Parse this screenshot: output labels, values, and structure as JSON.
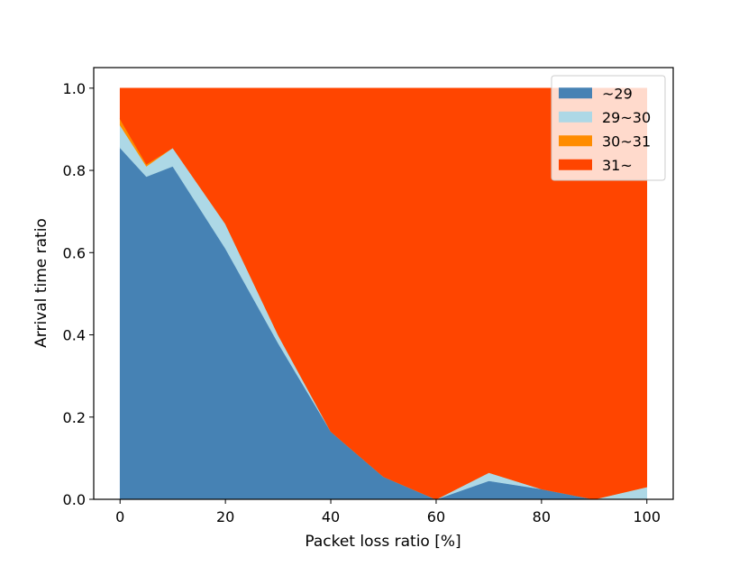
{
  "chart_data": {
    "type": "area",
    "stacked": true,
    "xlabel": "Packet loss ratio [%]",
    "ylabel": "Arrival time ratio",
    "xlim": [
      -5,
      105
    ],
    "ylim": [
      0,
      1.05
    ],
    "xticks": [
      0,
      20,
      40,
      60,
      80,
      100
    ],
    "yticks": [
      0.0,
      0.2,
      0.4,
      0.6,
      0.8,
      1.0
    ],
    "xtick_labels": [
      "0",
      "20",
      "40",
      "60",
      "80",
      "100"
    ],
    "ytick_labels": [
      "0.0",
      "0.2",
      "0.4",
      "0.6",
      "0.8",
      "1.0"
    ],
    "grid": false,
    "legend_position": "top-right",
    "x": [
      0,
      5,
      10,
      20,
      30,
      40,
      50,
      60,
      70,
      80,
      90,
      100
    ],
    "series": [
      {
        "name": "~29",
        "color": "#4682b4",
        "values": [
          0.855,
          0.785,
          0.81,
          0.61,
          0.38,
          0.165,
          0.055,
          0.0,
          0.045,
          0.025,
          0.0,
          0.0
        ]
      },
      {
        "name": "29~30",
        "color": "#add8e6",
        "values": [
          0.055,
          0.025,
          0.045,
          0.06,
          0.02,
          0.0,
          0.0,
          0.0,
          0.02,
          0.0,
          0.0,
          0.03
        ]
      },
      {
        "name": "30~31",
        "color": "#ff8c00",
        "values": [
          0.015,
          0.005,
          0.0,
          0.0,
          0.0,
          0.0,
          0.0,
          0.0,
          0.0,
          0.0,
          0.0,
          0.0
        ]
      },
      {
        "name": "31~",
        "color": "#ff4500",
        "values": [
          0.075,
          0.185,
          0.145,
          0.33,
          0.6,
          0.835,
          0.945,
          1.0,
          0.935,
          0.975,
          1.0,
          0.97
        ]
      }
    ]
  }
}
